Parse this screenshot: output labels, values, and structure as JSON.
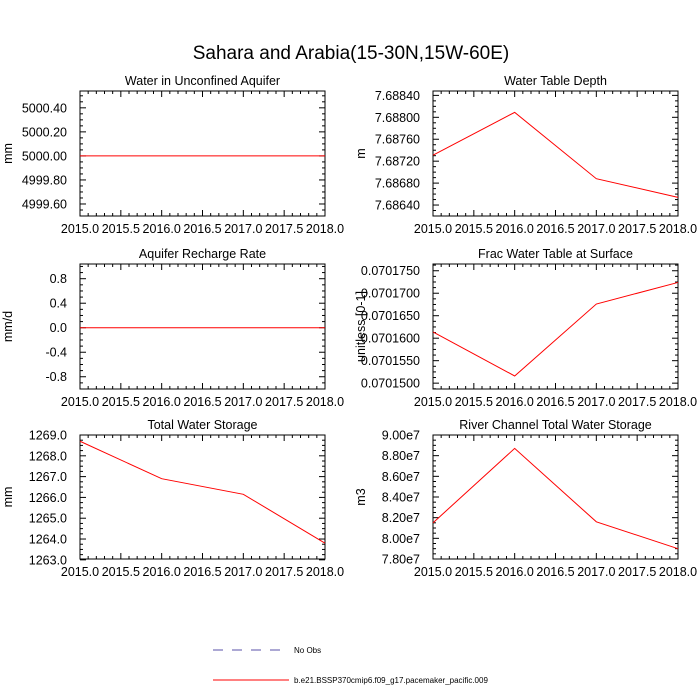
{
  "title": "Sahara and Arabia(15-30N,15W-60E)",
  "legend": [
    {
      "label": "No Obs",
      "color": "#5a52a8",
      "dash": true
    },
    {
      "label": "b.e21.BSSP370cmip6.f09_g17.pacemaker_pacific.009",
      "color": "#ff0000",
      "dash": false
    }
  ],
  "chart_data": [
    {
      "type": "line",
      "title": "Water in Unconfined Aquifer",
      "ylabel": "mm",
      "xlim": [
        2015.0,
        2018.0
      ],
      "ylim": [
        4999.5,
        5000.54
      ],
      "xticks": [
        2015.0,
        2015.5,
        2016.0,
        2016.5,
        2017.0,
        2017.5,
        2018.0
      ],
      "xticklabels": [
        "2015.0",
        "2015.5",
        "2016.0",
        "2016.5",
        "2017.0",
        "2017.5",
        "2018.0"
      ],
      "yticks": [
        4999.6,
        4999.8,
        5000.0,
        5000.2,
        5000.4
      ],
      "yticklabels": [
        "4999.60",
        "4999.80",
        "5000.00",
        "5000.20",
        "5000.40"
      ],
      "series": [
        {
          "color": "#ff0000",
          "x": [
            2015.0,
            2016.0,
            2017.0,
            2018.0
          ],
          "y": [
            5000.0,
            5000.0,
            5000.0,
            5000.0
          ]
        }
      ]
    },
    {
      "type": "line",
      "title": "Water Table Depth",
      "ylabel": "m",
      "xlim": [
        2015.0,
        2018.0
      ],
      "ylim": [
        7.6862,
        7.68848
      ],
      "xticks": [
        2015.0,
        2015.5,
        2016.0,
        2016.5,
        2017.0,
        2017.5,
        2018.0
      ],
      "xticklabels": [
        "2015.0",
        "2015.5",
        "2016.0",
        "2016.5",
        "2017.0",
        "2017.5",
        "2018.0"
      ],
      "yticks": [
        7.6864,
        7.6868,
        7.6872,
        7.6876,
        7.688,
        7.6884
      ],
      "yticklabels": [
        "7.68640",
        "7.68680",
        "7.68720",
        "7.68760",
        "7.68800",
        "7.68840"
      ],
      "series": [
        {
          "color": "#ff0000",
          "x": [
            2015.0,
            2016.0,
            2017.0,
            2018.0
          ],
          "y": [
            7.68731,
            7.68809,
            7.68688,
            7.68654
          ]
        }
      ]
    },
    {
      "type": "line",
      "title": "Aquifer Recharge Rate",
      "ylabel": "mm/d",
      "xlim": [
        2015.0,
        2018.0
      ],
      "ylim": [
        -1.0,
        1.04
      ],
      "xticks": [
        2015.0,
        2015.5,
        2016.0,
        2016.5,
        2017.0,
        2017.5,
        2018.0
      ],
      "xticklabels": [
        "2015.0",
        "2015.5",
        "2016.0",
        "2016.5",
        "2017.0",
        "2017.5",
        "2018.0"
      ],
      "yticks": [
        -0.8,
        -0.4,
        0.0,
        0.4,
        0.8
      ],
      "yticklabels": [
        "-0.8",
        "-0.4",
        "0.0",
        "0.4",
        "0.8"
      ],
      "series": [
        {
          "color": "#ff0000",
          "x": [
            2015.0,
            2016.0,
            2017.0,
            2018.0
          ],
          "y": [
            0.0,
            0.0,
            0.0,
            0.0
          ]
        }
      ]
    },
    {
      "type": "line",
      "title": "Frac Water Table at Surface",
      "ylabel": "unitless [0-1]",
      "xlim": [
        2015.0,
        2018.0
      ],
      "ylim": [
        0.0701487,
        0.0701765
      ],
      "xticks": [
        2015.0,
        2015.5,
        2016.0,
        2016.5,
        2017.0,
        2017.5,
        2018.0
      ],
      "xticklabels": [
        "2015.0",
        "2015.5",
        "2016.0",
        "2016.5",
        "2017.0",
        "2017.5",
        "2018.0"
      ],
      "yticks": [
        0.07015,
        0.070155,
        0.07016,
        0.070165,
        0.07017,
        0.070175
      ],
      "yticklabels": [
        "0.0701500",
        "0.0701550",
        "0.0701600",
        "0.0701650",
        "0.0701700",
        "0.0701750"
      ],
      "series": [
        {
          "color": "#ff0000",
          "x": [
            2015.0,
            2016.0,
            2017.0,
            2018.0
          ],
          "y": [
            0.0701614,
            0.0701516,
            0.0701676,
            0.0701724
          ]
        }
      ]
    },
    {
      "type": "line",
      "title": "Total Water Storage",
      "ylabel": "mm",
      "xlim": [
        2015.0,
        2018.0
      ],
      "ylim": [
        1263.04,
        1269.0
      ],
      "xticks": [
        2015.0,
        2015.5,
        2016.0,
        2016.5,
        2017.0,
        2017.5,
        2018.0
      ],
      "xticklabels": [
        "2015.0",
        "2015.5",
        "2016.0",
        "2016.5",
        "2017.0",
        "2017.5",
        "2018.0"
      ],
      "yticks": [
        1263.0,
        1264.0,
        1265.0,
        1266.0,
        1267.0,
        1268.0,
        1269.0
      ],
      "yticklabels": [
        "1263.0",
        "1264.0",
        "1265.0",
        "1266.0",
        "1267.0",
        "1268.0",
        "1269.0"
      ],
      "series": [
        {
          "color": "#ff0000",
          "x": [
            2015.0,
            2016.0,
            2017.0,
            2018.0
          ],
          "y": [
            1268.7,
            1266.9,
            1266.15,
            1263.8
          ]
        }
      ]
    },
    {
      "type": "line",
      "title": "River Channel Total Water Storage",
      "ylabel": "m3",
      "xlim": [
        2015.0,
        2018.0
      ],
      "ylim": [
        78000000,
        90000000
      ],
      "xticks": [
        2015.0,
        2015.5,
        2016.0,
        2016.5,
        2017.0,
        2017.5,
        2018.0
      ],
      "xticklabels": [
        "2015.0",
        "2015.5",
        "2016.0",
        "2016.5",
        "2017.0",
        "2017.5",
        "2018.0"
      ],
      "yticks": [
        78000000,
        80000000,
        82000000,
        84000000,
        86000000,
        88000000,
        90000000
      ],
      "yticklabels": [
        "7.80e7",
        "8.00e7",
        "8.20e7",
        "8.40e7",
        "8.60e7",
        "8.80e7",
        "9.00e7"
      ],
      "series": [
        {
          "color": "#ff0000",
          "x": [
            2015.0,
            2016.0,
            2017.0,
            2018.0
          ],
          "y": [
            81500000,
            88700000,
            81600000,
            79000000
          ]
        }
      ]
    }
  ]
}
